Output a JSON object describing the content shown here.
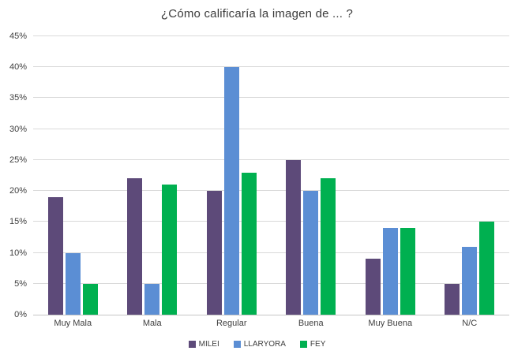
{
  "chart_data": {
    "type": "bar",
    "title": "¿Cómo calificaría la imagen de ... ?",
    "categories": [
      "Muy Mala",
      "Mala",
      "Regular",
      "Buena",
      "Muy Buena",
      "N/C"
    ],
    "series": [
      {
        "name": "MILEI",
        "color": "#5D4A79",
        "values": [
          19,
          22,
          20,
          25,
          9,
          5
        ]
      },
      {
        "name": "LLARYORA",
        "color": "#5B8ED4",
        "values": [
          10,
          5,
          40,
          20,
          14,
          11
        ]
      },
      {
        "name": "FEY",
        "color": "#00B050",
        "values": [
          5,
          21,
          23,
          22,
          14,
          15
        ]
      }
    ],
    "xlabel": "",
    "ylabel": "",
    "ylim": [
      0,
      45
    ],
    "ytick_step": 5,
    "ytick_suffix": "%",
    "grid": true,
    "legend_position": "bottom"
  },
  "colors": {
    "background": "#FFFFFF",
    "gridline": "#D9D9D9",
    "axis_line": "#C6C6C6",
    "text": "#404040",
    "title_text": "#3B3B3B"
  }
}
